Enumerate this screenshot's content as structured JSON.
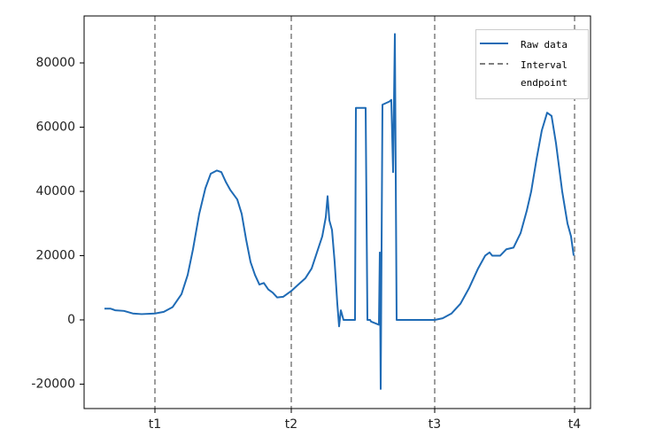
{
  "chart_data": {
    "type": "line",
    "x": [
      23,
      30,
      35,
      45,
      55,
      65,
      80,
      90,
      100,
      110,
      117,
      123,
      130,
      137,
      143,
      150,
      155,
      160,
      165,
      173,
      178,
      183,
      188,
      193,
      198,
      203,
      208,
      213,
      218,
      225,
      234,
      240,
      250,
      257,
      263,
      269,
      273,
      275,
      277,
      280,
      283,
      286,
      288,
      290,
      293,
      303,
      306,
      307,
      318,
      320,
      323,
      324,
      333,
      334,
      335,
      337,
      345,
      347,
      349,
      351,
      353,
      365,
      396,
      405,
      415,
      425,
      435,
      445,
      453,
      458,
      461,
      470,
      477,
      485,
      493,
      500,
      505,
      511,
      517,
      523,
      528,
      533,
      540,
      546,
      550,
      553
    ],
    "series": [
      {
        "name": "Raw data",
        "color": "#1f6bb5",
        "values": [
          3500,
          3500,
          3000,
          2800,
          2000,
          1800,
          2000,
          2500,
          4000,
          8000,
          14000,
          22000,
          33000,
          41000,
          45500,
          46500,
          46000,
          43000,
          40500,
          37500,
          33000,
          25000,
          18000,
          14000,
          11000,
          11500,
          9500,
          8500,
          7000,
          7200,
          9000,
          10500,
          13000,
          16000,
          21000,
          26000,
          32000,
          38500,
          31000,
          28000,
          18000,
          5000,
          -2000,
          3000,
          0,
          0,
          0,
          66000,
          66000,
          0,
          0,
          -500,
          -1500,
          21000,
          -21500,
          67000,
          68000,
          68500,
          46000,
          89000,
          0,
          0,
          0,
          500,
          2000,
          5000,
          10000,
          16000,
          20000,
          21000,
          20000,
          20000,
          22000,
          22500,
          27000,
          34000,
          40000,
          50000,
          59000,
          64500,
          63500,
          55000,
          40000,
          30000,
          26000,
          20000
        ]
      }
    ],
    "endpoint_lines": {
      "name": "Interval endpoint",
      "color": "#7f7f7f"
    },
    "xlim": [
      0,
      572
    ],
    "xticks": [
      {
        "value": 80,
        "label": "t1"
      },
      {
        "value": 234,
        "label": "t2"
      },
      {
        "value": 396,
        "label": "t3"
      },
      {
        "value": 554,
        "label": "t4"
      }
    ],
    "ylim": [
      -27600,
      94620
    ],
    "yticks": [
      -20000,
      0,
      20000,
      40000,
      60000,
      80000
    ],
    "legend": "upper right"
  }
}
